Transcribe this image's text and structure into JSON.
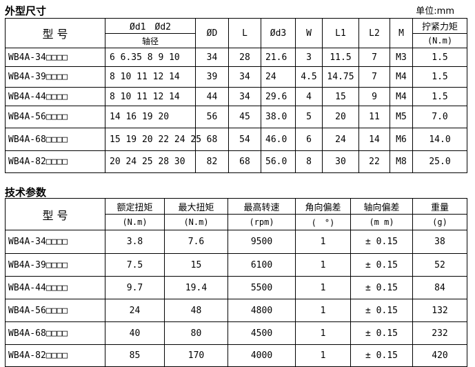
{
  "dims": {
    "title": "外型尺寸",
    "unit": "单位:mm",
    "headers": {
      "model": "型 号",
      "d12": "Ød1　Ød2",
      "shaft": "轴径",
      "D": "ØD",
      "L": "L",
      "d3": "Ød3",
      "W": "W",
      "L1": "L1",
      "L2": "L2",
      "M": "M",
      "torque": "拧紧力矩",
      "torque_unit": "(N.m)"
    },
    "rows": [
      [
        "WB4A-34□□□□",
        "6 6.35  8 9 10",
        "34",
        "28",
        "21.6",
        "3",
        "11.5",
        "7",
        "M3",
        "1.5"
      ],
      [
        "WB4A-39□□□□",
        "8 10 11 12 14",
        "39",
        "34",
        "24",
        "4.5",
        "14.75",
        "7",
        "M4",
        "1.5"
      ],
      [
        "WB4A-44□□□□",
        "8 10 11 12 14",
        "44",
        "34",
        "29.6",
        "4",
        "15",
        "9",
        "M4",
        "1.5"
      ],
      [
        "WB4A-56□□□□",
        "14 16 19 20",
        "56",
        "45",
        "38.0",
        "5",
        "20",
        "11",
        "M5",
        "7.0"
      ],
      [
        "WB4A-68□□□□",
        "15 19 20 22 24 25",
        "68",
        "54",
        "46.0",
        "6",
        "24",
        "14",
        "M6",
        "14.0"
      ],
      [
        "WB4A-82□□□□",
        "20 24 25 28 30",
        "82",
        "68",
        "56.0",
        "8",
        "30",
        "22",
        "M8",
        "25.0"
      ]
    ]
  },
  "tech": {
    "title": "技术参数",
    "headers": [
      "型 号",
      "额定扭矩",
      "最大扭矩",
      "最高转速",
      "角向偏差",
      "轴向偏差",
      "重量"
    ],
    "units": [
      "(N.m)",
      "(N.m)",
      "(rpm)",
      "(　°)",
      "(m m)",
      "(g)"
    ],
    "rows": [
      [
        "WB4A-34□□□□",
        "3.8",
        "7.6",
        "9500",
        "1",
        "± 0.15",
        "38"
      ],
      [
        "WB4A-39□□□□",
        "7.5",
        "15",
        "6100",
        "1",
        "± 0.15",
        "52"
      ],
      [
        "WB4A-44□□□□",
        "9.7",
        "19.4",
        "5500",
        "1",
        "± 0.15",
        "84"
      ],
      [
        "WB4A-56□□□□",
        "24",
        "48",
        "4800",
        "1",
        "± 0.15",
        "132"
      ],
      [
        "WB4A-68□□□□",
        "40",
        "80",
        "4500",
        "1",
        "± 0.15",
        "232"
      ],
      [
        "WB4A-82□□□□",
        "85",
        "170",
        "4000",
        "1",
        "± 0.15",
        "420"
      ]
    ]
  }
}
